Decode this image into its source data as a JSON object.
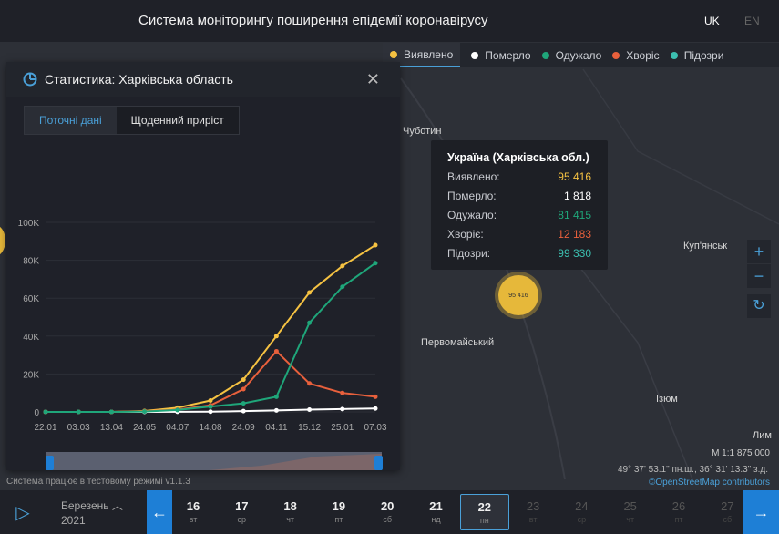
{
  "header": {
    "title": "Система моніторингу поширення епідемії коронавірусу",
    "lang_uk": "UK",
    "lang_en": "EN"
  },
  "legend": [
    {
      "label": "Виявлено",
      "color": "#f5c242"
    },
    {
      "label": "Померло",
      "color": "#ffffff"
    },
    {
      "label": "Одужало",
      "color": "#1fa67a"
    },
    {
      "label": "Хворіє",
      "color": "#e8603c"
    },
    {
      "label": "Підозри",
      "color": "#3cbfb0"
    }
  ],
  "panel": {
    "title": "Статистика: Харківська область",
    "tabs": [
      "Поточні дані",
      "Щоденний приріст"
    ]
  },
  "chart_data": {
    "type": "line",
    "categories": [
      "22.01",
      "03.03",
      "13.04",
      "24.05",
      "04.07",
      "14.08",
      "24.09",
      "04.11",
      "15.12",
      "25.01",
      "07.03"
    ],
    "yticks": [
      "0",
      "20K",
      "40K",
      "60K",
      "80K",
      "100K"
    ],
    "ylim": [
      0,
      100000
    ],
    "grid": true,
    "legend_position": "bottom",
    "series": [
      {
        "name": "Виявлено",
        "color": "#f5c242",
        "values": [
          0,
          0,
          0,
          500,
          2200,
          6000,
          17000,
          40000,
          63000,
          77000,
          88000
        ]
      },
      {
        "name": "Померло",
        "color": "#ffffff",
        "values": [
          0,
          0,
          0,
          0,
          50,
          150,
          400,
          800,
          1200,
          1500,
          1800
        ]
      },
      {
        "name": "Одужало",
        "color": "#1fa67a",
        "values": [
          0,
          0,
          0,
          200,
          1000,
          2800,
          4500,
          8000,
          47000,
          66000,
          78500
        ]
      },
      {
        "name": "Хворіє",
        "color": "#e8603c",
        "values": [
          0,
          0,
          0,
          300,
          1200,
          3500,
          12000,
          32000,
          15000,
          10000,
          8000
        ]
      }
    ]
  },
  "tooltip": {
    "title": "Україна (Харківська обл.)",
    "rows": [
      {
        "label": "Виявлено:",
        "value": "95 416",
        "color": "#f5c242"
      },
      {
        "label": "Померло:",
        "value": "1 818",
        "color": "#ffffff"
      },
      {
        "label": "Одужало:",
        "value": "81 415",
        "color": "#1fa67a"
      },
      {
        "label": "Хворіє:",
        "value": "12 183",
        "color": "#e8603c"
      },
      {
        "label": "Підозри:",
        "value": "99 330",
        "color": "#3cbfb0"
      }
    ]
  },
  "map": {
    "labels": [
      "Чуботин",
      "Куп'янськ",
      "Первомайський",
      "Ізюм",
      "Лим"
    ],
    "cluster": "95 416",
    "scale": "M 1:1 875 000",
    "coords": "49° 37' 53.1\" пн.ш., 36° 31' 13.3\" з.д.",
    "attribution": "©OpenStreetMap contributors",
    "status": "Система працює в тестовому режимі v1.1.3"
  },
  "timeline": {
    "month": "Березень",
    "year": "2021",
    "days": [
      {
        "n": "16",
        "w": "вт"
      },
      {
        "n": "17",
        "w": "ср"
      },
      {
        "n": "18",
        "w": "чт"
      },
      {
        "n": "19",
        "w": "пт"
      },
      {
        "n": "20",
        "w": "сб"
      },
      {
        "n": "21",
        "w": "нд"
      },
      {
        "n": "22",
        "w": "пн"
      },
      {
        "n": "23",
        "w": "вт"
      },
      {
        "n": "24",
        "w": "ср"
      },
      {
        "n": "25",
        "w": "чт"
      },
      {
        "n": "26",
        "w": "пт"
      },
      {
        "n": "27",
        "w": "сб"
      }
    ],
    "selected": "22"
  }
}
